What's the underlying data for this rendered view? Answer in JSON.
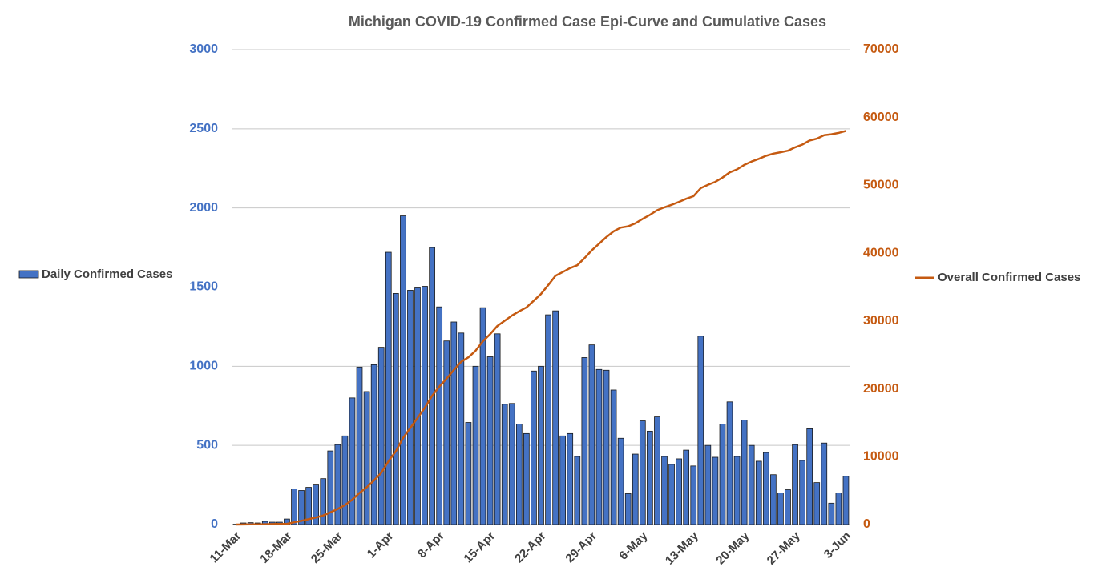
{
  "chart_data": {
    "type": "bar-line",
    "title": "Michigan COVID-19 Confirmed Case Epi-Curve and Cumulative Cases",
    "categories": [
      "11-Mar",
      null,
      null,
      null,
      null,
      null,
      null,
      "18-Mar",
      null,
      null,
      null,
      null,
      null,
      null,
      "25-Mar",
      null,
      null,
      null,
      null,
      null,
      null,
      "1-Apr",
      null,
      null,
      null,
      null,
      null,
      null,
      "8-Apr",
      null,
      null,
      null,
      null,
      null,
      null,
      "15-Apr",
      null,
      null,
      null,
      null,
      null,
      null,
      "22-Apr",
      null,
      null,
      null,
      null,
      null,
      null,
      "29-Apr",
      null,
      null,
      null,
      null,
      null,
      null,
      "6-May",
      null,
      null,
      null,
      null,
      null,
      null,
      "13-May",
      null,
      null,
      null,
      null,
      null,
      null,
      "20-May",
      null,
      null,
      null,
      null,
      null,
      null,
      "27-May",
      null,
      null,
      null,
      null,
      null,
      null,
      "3-Jun"
    ],
    "series": [
      {
        "name": "Daily Confirmed Cases",
        "type": "bar",
        "color": "#4472c4",
        "values": [
          2,
          10,
          12,
          10,
          20,
          15,
          15,
          35,
          225,
          215,
          235,
          250,
          290,
          465,
          505,
          560,
          800,
          995,
          840,
          1010,
          1120,
          1720,
          1460,
          1950,
          1480,
          1495,
          1505,
          1750,
          1375,
          1160,
          1280,
          1210,
          645,
          1000,
          1370,
          1060,
          1205,
          760,
          765,
          635,
          575,
          970,
          1000,
          1325,
          1350,
          560,
          575,
          430,
          1055,
          1135,
          980,
          975,
          850,
          545,
          195,
          445,
          655,
          590,
          680,
          430,
          380,
          415,
          470,
          370,
          1190,
          500,
          425,
          635,
          775,
          430,
          660,
          500,
          400,
          455,
          315,
          200,
          220,
          505,
          405,
          605,
          265,
          515,
          135,
          200,
          305
        ]
      },
      {
        "name": "Overall Confirmed Cases",
        "type": "line",
        "axis": "y2",
        "color": "#c55a11",
        "values": [
          2,
          12,
          25,
          33,
          53,
          65,
          80,
          110,
          336,
          549,
          787,
          1035,
          1328,
          1793,
          2296,
          2856,
          3657,
          4650,
          5486,
          6498,
          7615,
          9335,
          10795,
          12745,
          14225,
          15720,
          17225,
          18975,
          20350,
          21510,
          22790,
          24000,
          24645,
          25645,
          27015,
          28075,
          29280,
          30040,
          30805,
          31440,
          32015,
          32985,
          33985,
          35310,
          36660,
          37220,
          37795,
          38225,
          39280,
          40415,
          41395,
          42370,
          43220,
          43765,
          43960,
          44405,
          45060,
          45650,
          46330,
          46760,
          47140,
          47555,
          48025,
          48395,
          49585,
          50085,
          50510,
          51145,
          51920,
          52350,
          53010,
          53510,
          53910,
          54365,
          54680,
          54880,
          55100,
          55605,
          56010,
          56615,
          56880,
          57395,
          57530,
          57730,
          58035
        ]
      }
    ],
    "ylim": [
      0,
      3000
    ],
    "yticks": [
      0,
      500,
      1000,
      1500,
      2000,
      2500,
      3000
    ],
    "y2lim": [
      0,
      70000
    ],
    "y2ticks": [
      0,
      10000,
      20000,
      30000,
      40000,
      50000,
      60000,
      70000
    ],
    "grid": true
  }
}
